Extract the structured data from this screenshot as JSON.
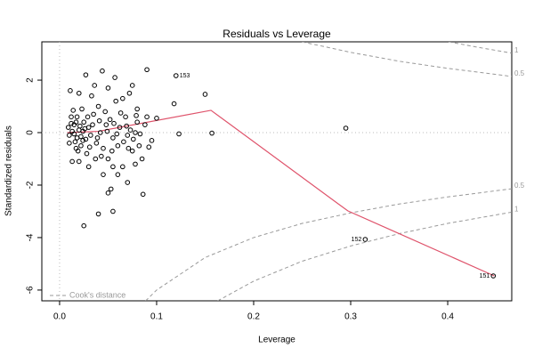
{
  "chart_data": {
    "type": "scatter",
    "title": "Residuals vs Leverage",
    "x_label": "Leverage",
    "y_label": "Standardized residuals",
    "xlim": [
      -0.0183,
      0.466
    ],
    "ylim": [
      -6.41,
      3.46
    ],
    "xticks": [
      {
        "value": 0,
        "label": "0.0"
      },
      0.1,
      0.2,
      0.3,
      0.4
    ],
    "yticks": [
      -6,
      -4,
      -2,
      0,
      2
    ],
    "color": "#000000",
    "x": [
      0.012,
      0.015,
      0.018,
      0.02,
      0.022,
      0.01,
      0.013,
      0.016,
      0.025,
      0.028,
      0.03,
      0.032,
      0.035,
      0.038,
      0.04,
      0.042,
      0.045,
      0.048,
      0.05,
      0.052,
      0.055,
      0.058,
      0.06,
      0.062,
      0.065,
      0.068,
      0.07,
      0.072,
      0.075,
      0.078,
      0.08,
      0.085,
      0.088,
      0.09,
      0.095,
      0.1,
      0.092,
      0.011,
      0.02,
      0.027,
      0.033,
      0.036,
      0.044,
      0.05,
      0.057,
      0.065,
      0.075,
      0.08,
      0.09,
      0.013,
      0.02,
      0.03,
      0.037,
      0.045,
      0.055,
      0.06,
      0.07,
      0.078,
      0.086,
      0.025,
      0.04,
      0.055,
      0.05,
      0.053,
      0.082,
      0.014,
      0.017,
      0.019,
      0.023,
      0.024,
      0.026,
      0.029,
      0.031,
      0.034,
      0.039,
      0.041,
      0.043,
      0.047,
      0.049,
      0.054,
      0.056,
      0.059,
      0.063,
      0.066,
      0.069,
      0.071,
      0.073,
      0.076,
      0.079,
      0.083,
      0.009,
      0.01,
      0.012,
      0.015,
      0.017,
      0.018,
      0.021,
      0.022,
      0.024,
      0.027,
      0.118,
      0.123,
      0.157,
      0.15,
      0.295
    ],
    "y": [
      0.6,
      0.3,
      -0.2,
      0.1,
      -0.5,
      -0.1,
      0.05,
      -0.35,
      0.4,
      -0.8,
      0.2,
      -0.1,
      0.7,
      -0.4,
      1.0,
      0.0,
      -0.6,
      0.3,
      -1.0,
      0.5,
      -0.2,
      1.2,
      -0.5,
      0.2,
      -1.3,
      0.6,
      -0.1,
      1.5,
      -0.7,
      0.0,
      0.4,
      -1.0,
      0.3,
      0.6,
      -0.3,
      0.55,
      -0.55,
      1.6,
      1.5,
      2.2,
      1.4,
      1.8,
      2.35,
      1.7,
      2.1,
      1.3,
      1.8,
      0.9,
      2.4,
      -1.1,
      -1.1,
      -1.3,
      -1.0,
      -1.6,
      -1.3,
      -1.6,
      -1.9,
      -1.2,
      -2.35,
      -3.55,
      -3.1,
      -3.0,
      -2.3,
      -2.15,
      -0.5,
      0.85,
      0.4,
      -0.7,
      0.9,
      -0.3,
      0.15,
      0.6,
      -0.55,
      0.3,
      -0.2,
      0.45,
      -0.9,
      0.8,
      0.05,
      -0.7,
      0.35,
      -0.05,
      0.75,
      -0.35,
      0.25,
      -0.6,
      0.1,
      -0.25,
      0.65,
      -0.05,
      0.2,
      -0.4,
      0.35,
      -0.05,
      -0.6,
      0.6,
      0.25,
      -0.15,
      0.05,
      -0.25,
      1.1,
      -0.05,
      -0.02,
      1.46,
      0.17
    ],
    "labelled_points": [
      {
        "label": "153",
        "x": 0.12,
        "y": 2.17
      },
      {
        "label": "152",
        "x": 0.315,
        "y": -4.07
      },
      {
        "label": "151",
        "x": 0.447,
        "y": -5.46
      }
    ],
    "smooth": {
      "color": "#DF536B",
      "x": [
        0.008,
        0.04,
        0.156,
        0.297,
        0.448
      ],
      "y": [
        0.0,
        0.05,
        0.85,
        -2.98,
        -5.46
      ]
    },
    "cook_legend": "Cook's distance",
    "cook_color": "#999999",
    "cook_curves": [
      {
        "level": 1,
        "x": [
          0.401,
          0.43,
          0.466
        ],
        "y": [
          3.46,
          3.26,
          3.03
        ]
      },
      {
        "level": 0.5,
        "x": [
          0.25,
          0.3,
          0.35,
          0.4,
          0.466
        ],
        "y": [
          3.46,
          3.06,
          2.72,
          2.45,
          2.14
        ]
      },
      {
        "level": 0.5,
        "x": [
          0.0887,
          0.1,
          0.15,
          0.2,
          0.25,
          0.3,
          0.35,
          0.4,
          0.466
        ],
        "y": [
          -6.41,
          -6.0,
          -4.76,
          -4.0,
          -3.46,
          -3.06,
          -2.72,
          -2.45,
          -2.14
        ]
      },
      {
        "level": 1,
        "x": [
          0.163,
          0.2,
          0.25,
          0.3,
          0.35,
          0.4,
          0.466
        ],
        "y": [
          -6.41,
          -5.66,
          -4.9,
          -4.32,
          -3.85,
          -3.46,
          -3.03
        ]
      }
    ]
  }
}
